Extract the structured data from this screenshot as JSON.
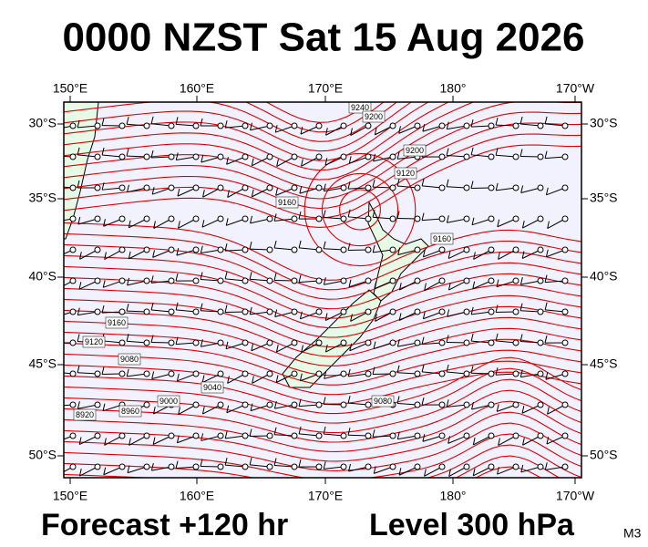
{
  "map": {
    "title": "0000 NZST Sat 15 Aug 2026",
    "lon_labels": [
      "150°E",
      "160°E",
      "170°E",
      "180°",
      "170°W"
    ],
    "lat_labels": [
      "30°S",
      "35°S",
      "40°S",
      "45°S",
      "50°S"
    ],
    "contour_labels": [
      "8920",
      "8960",
      "9000",
      "9040",
      "9080",
      "9120",
      "9160",
      "9080",
      "9160",
      "9160",
      "9200",
      "9240",
      "9120",
      "9200"
    ],
    "footer": {
      "forecast": "Forecast +120 hr",
      "level": "Level 300 hPa",
      "code": "M3"
    }
  }
}
